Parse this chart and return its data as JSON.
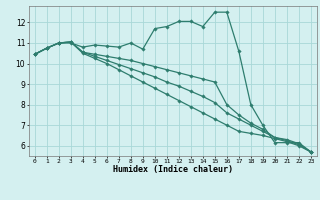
{
  "xlabel": "Humidex (Indice chaleur)",
  "bg_color": "#d4f0f0",
  "line_color": "#2e7d6e",
  "grid_color": "#a8d8d8",
  "x_ticks": [
    0,
    1,
    2,
    3,
    4,
    5,
    6,
    7,
    8,
    9,
    10,
    11,
    12,
    13,
    14,
    15,
    16,
    17,
    18,
    19,
    20,
    21,
    22,
    23
  ],
  "ylim": [
    5.5,
    12.8
  ],
  "xlim": [
    -0.5,
    23.5
  ],
  "series": [
    {
      "x": [
        0,
        1,
        2,
        3,
        4,
        5,
        6,
        7,
        8,
        9,
        10,
        11,
        12,
        13,
        14,
        15,
        16,
        17,
        18,
        19,
        20,
        21,
        22,
        23
      ],
      "y": [
        10.45,
        10.75,
        11.0,
        11.0,
        10.8,
        10.9,
        10.85,
        10.8,
        11.0,
        10.7,
        11.7,
        11.8,
        12.05,
        12.05,
        11.8,
        12.5,
        12.5,
        10.6,
        8.0,
        7.0,
        6.15,
        6.15,
        6.15,
        5.7
      ]
    },
    {
      "x": [
        0,
        1,
        2,
        3,
        4,
        5,
        6,
        7,
        8,
        9,
        10,
        11,
        12,
        13,
        14,
        15,
        16,
        17,
        18,
        19,
        20,
        21,
        22,
        23
      ],
      "y": [
        10.45,
        10.75,
        11.0,
        11.05,
        10.55,
        10.45,
        10.35,
        10.25,
        10.15,
        10.0,
        9.85,
        9.7,
        9.55,
        9.4,
        9.25,
        9.1,
        8.0,
        7.5,
        7.1,
        6.8,
        6.4,
        6.3,
        6.1,
        5.7
      ]
    },
    {
      "x": [
        0,
        1,
        2,
        3,
        4,
        5,
        6,
        7,
        8,
        9,
        10,
        11,
        12,
        13,
        14,
        15,
        16,
        17,
        18,
        19,
        20,
        21,
        22,
        23
      ],
      "y": [
        10.45,
        10.75,
        11.0,
        11.05,
        10.55,
        10.35,
        10.15,
        9.95,
        9.75,
        9.55,
        9.35,
        9.1,
        8.9,
        8.65,
        8.4,
        8.1,
        7.6,
        7.3,
        7.0,
        6.7,
        6.4,
        6.25,
        6.05,
        5.7
      ]
    },
    {
      "x": [
        0,
        1,
        2,
        3,
        4,
        5,
        6,
        7,
        8,
        9,
        10,
        11,
        12,
        13,
        14,
        15,
        16,
        17,
        18,
        19,
        20,
        21,
        22,
        23
      ],
      "y": [
        10.45,
        10.75,
        11.0,
        11.05,
        10.5,
        10.25,
        10.0,
        9.7,
        9.4,
        9.1,
        8.8,
        8.5,
        8.2,
        7.9,
        7.6,
        7.3,
        7.0,
        6.7,
        6.6,
        6.5,
        6.35,
        6.2,
        6.0,
        5.7
      ]
    }
  ]
}
